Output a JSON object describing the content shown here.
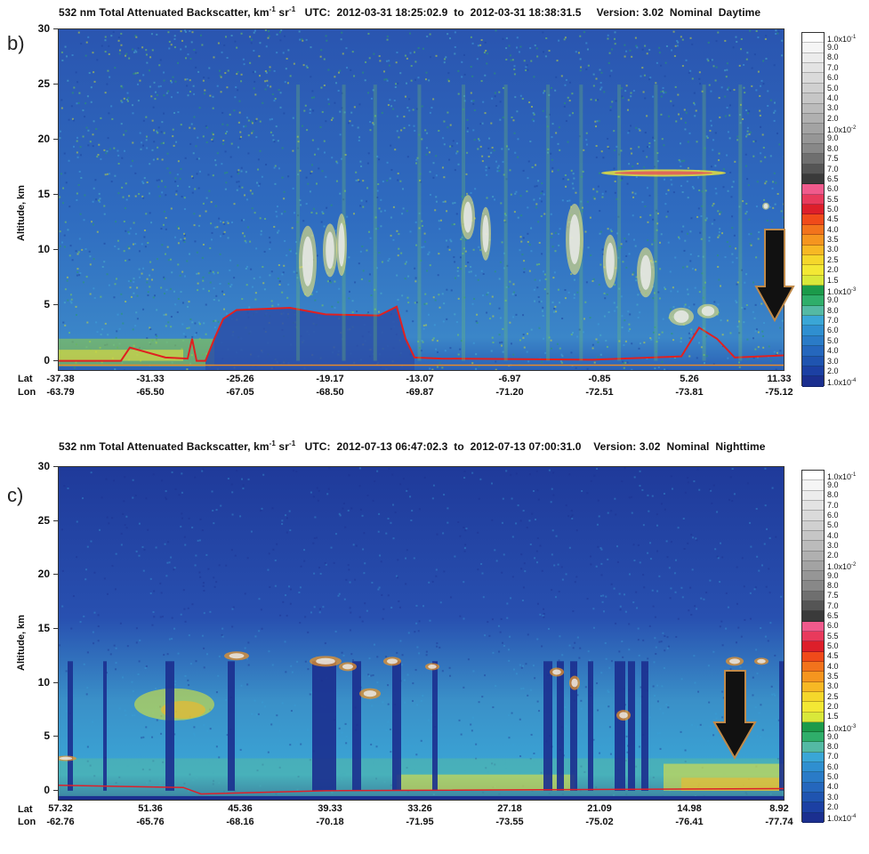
{
  "panels": [
    {
      "label": "b)",
      "title_main": "532 nm Total Attenuated Backscatter, km",
      "title_sup1": "-1",
      "title_mid": " sr",
      "title_sup2": "-1",
      "title_rest": "   UTC:  2012-03-31 18:25:02.9  to  2012-03-31 18:38:31.5     Version: 3.02  Nominal  Daytime",
      "ylabel": "Altitude, km",
      "lat_label": "Lat",
      "lon_label": "Lon",
      "lat": [
        "-37.38",
        "-31.33",
        "-25.26",
        "-19.17",
        "-13.07",
        "-6.97",
        "-0.85",
        "5.26",
        "11.33"
      ],
      "lon": [
        "-63.79",
        "-65.50",
        "-67.05",
        "-68.50",
        "-69.87",
        "-71.20",
        "-72.51",
        "-73.81",
        "-75.12"
      ],
      "arrow_color": "#111111"
    },
    {
      "label": "c)",
      "title_main": "532 nm Total Attenuated Backscatter, km",
      "title_sup1": "-1",
      "title_mid": " sr",
      "title_sup2": "-1",
      "title_rest": "   UTC:  2012-07-13 06:47:02.3  to  2012-07-13 07:00:31.0    Version: 3.02  Nominal  Nighttime",
      "ylabel": "Altitude, km",
      "lat_label": "Lat",
      "lon_label": "Lon",
      "lat": [
        "57.32",
        "51.36",
        "45.36",
        "39.33",
        "33.26",
        "27.18",
        "21.09",
        "14.98",
        "8.92"
      ],
      "lon": [
        "-62.76",
        "-65.76",
        "-68.16",
        "-70.18",
        "-71.95",
        "-73.55",
        "-75.02",
        "-76.41",
        "-77.74"
      ],
      "arrow_color": "#111111"
    }
  ],
  "colorbar": {
    "labels": [
      "1.0x10-1",
      "9.0",
      "8.0",
      "7.0",
      "6.0",
      "5.0",
      "4.0",
      "3.0",
      "2.0",
      "1.0x10-2",
      "9.0",
      "8.0",
      "7.5",
      "7.0",
      "6.5",
      "6.0",
      "5.5",
      "5.0",
      "4.5",
      "4.0",
      "3.5",
      "3.0",
      "2.5",
      "2.0",
      "1.5",
      "1.0x10-3",
      "9.0",
      "8.0",
      "7.0",
      "6.0",
      "5.0",
      "4.0",
      "3.0",
      "2.0",
      "1.0x10-4"
    ],
    "colors": [
      "#ffffff",
      "#f5f5f5",
      "#ececec",
      "#e3e3e3",
      "#dadada",
      "#d0d0d0",
      "#c6c6c6",
      "#bbbbbb",
      "#b0b0b0",
      "#a3a3a3",
      "#969696",
      "#888888",
      "#6f6f6f",
      "#555555",
      "#3a3a3a",
      "#f05a8c",
      "#e83a5c",
      "#dd1f2a",
      "#f04a1a",
      "#f2731c",
      "#f5951f",
      "#f7b824",
      "#f5d72b",
      "#f3e834",
      "#d9e83a",
      "#1b9a4a",
      "#2fae6a",
      "#54b9a4",
      "#3aa6d6",
      "#2f8fd0",
      "#2a7bc7",
      "#2567bd",
      "#1f54b0",
      "#1c40a3",
      "#1b2f8f"
    ]
  },
  "chart_data": [
    {
      "type": "heatmap",
      "title": "532 nm Total Attenuated Backscatter, km-1 sr-1   UTC: 2012-03-31 18:25:02.9 to 2012-03-31 18:38:31.5   Version: 3.02 Nominal Daytime",
      "ylabel": "Altitude, km",
      "ylim": [
        -1,
        30
      ],
      "yticks": [
        0,
        5,
        10,
        15,
        20,
        25,
        30
      ],
      "x_lat": [
        -37.38,
        -31.33,
        -25.26,
        -19.17,
        -13.07,
        -6.97,
        -0.85,
        5.26,
        11.33
      ],
      "x_lon": [
        -63.79,
        -65.5,
        -67.05,
        -68.5,
        -69.87,
        -71.2,
        -72.51,
        -73.81,
        -75.12
      ]
    },
    {
      "type": "heatmap",
      "title": "532 nm Total Attenuated Backscatter, km-1 sr-1   UTC: 2012-07-13 06:47:02.3 to 2012-07-13 07:00:31.0   Version: 3.02 Nominal Nighttime",
      "ylabel": "Altitude, km",
      "ylim": [
        -1,
        30
      ],
      "yticks": [
        0,
        5,
        10,
        15,
        20,
        25,
        30
      ],
      "x_lat": [
        57.32,
        51.36,
        45.36,
        39.33,
        33.26,
        27.18,
        21.09,
        14.98,
        8.92
      ],
      "x_lon": [
        -62.76,
        -65.76,
        -68.16,
        -70.18,
        -71.95,
        -73.55,
        -75.02,
        -76.41,
        -77.74
      ]
    }
  ]
}
